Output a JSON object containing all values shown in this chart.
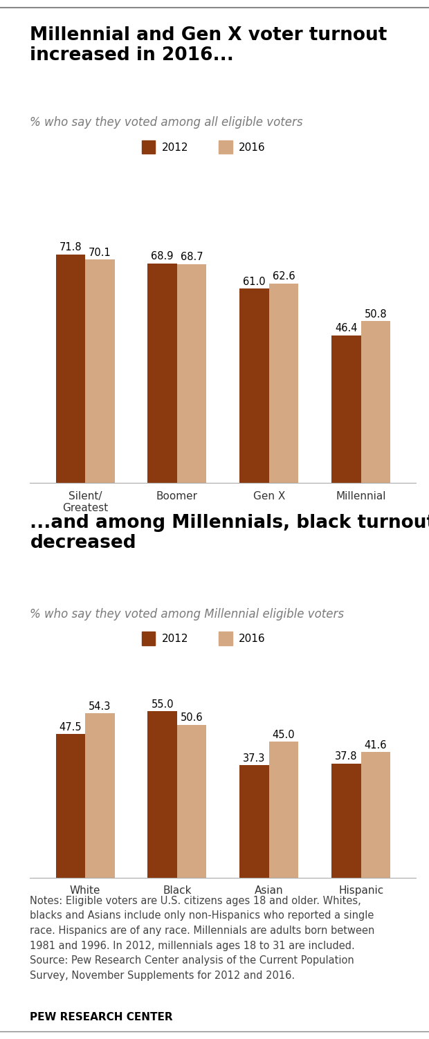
{
  "chart1": {
    "title": "Millennial and Gen X voter turnout\nincreased in 2016...",
    "subtitle": "% who say they voted among all eligible voters",
    "categories": [
      "Silent/\nGreatest",
      "Boomer",
      "Gen X",
      "Millennial"
    ],
    "values_2012": [
      71.8,
      68.9,
      61.0,
      46.4
    ],
    "values_2016": [
      70.1,
      68.7,
      62.6,
      50.8
    ]
  },
  "chart2": {
    "title": "...and among Millennials, black turnout\ndecreased",
    "subtitle": "% who say they voted among Millennial eligible voters",
    "categories": [
      "White",
      "Black",
      "Asian",
      "Hispanic"
    ],
    "values_2012": [
      47.5,
      55.0,
      37.3,
      37.8
    ],
    "values_2016": [
      54.3,
      50.6,
      45.0,
      41.6
    ]
  },
  "color_2012": "#8B3A0F",
  "color_2016": "#D4A882",
  "legend_2012": "2012",
  "legend_2016": "2016",
  "notes_line1": "Notes: Eligible voters are U.S. citizens ages 18 and older. Whites,",
  "notes_line2": "blacks and Asians include only non-Hispanics who reported a single",
  "notes_line3": "race. Hispanics are of any race. Millennials are adults born between",
  "notes_line4": "1981 and 1996. In 2012, millennials ages 18 to 31 are included.",
  "notes_line5": "Source: Pew Research Center analysis of the Current Population",
  "notes_line6": "Survey, November Supplements for 2012 and 2016.",
  "footer": "PEW RESEARCH CENTER",
  "bar_width": 0.32,
  "color_spine": "#cccccc",
  "label_fontsize": 10.5,
  "title_fontsize": 19,
  "subtitle_fontsize": 12,
  "tick_fontsize": 11,
  "notes_fontsize": 10.5,
  "legend_fontsize": 11
}
